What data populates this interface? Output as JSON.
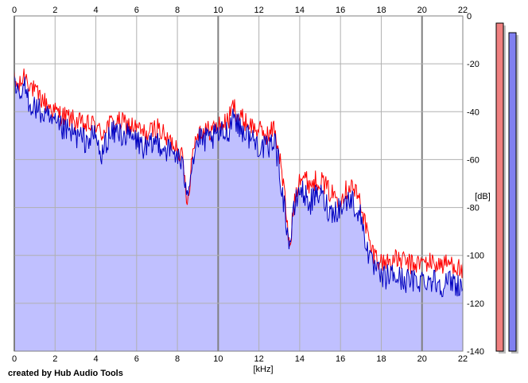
{
  "footer": {
    "credit": "created by Hub Audio Tools"
  },
  "colors": {
    "background": "#ffffff",
    "grid": "#b0b0b0",
    "grid_major": "#808080",
    "fill": "#c0c0ff",
    "left_channel": "#ff0000",
    "right_channel": "#0000c0",
    "meter_left_fill": "#f08080",
    "meter_right_fill": "#8080f0"
  },
  "chart_data": {
    "type": "line",
    "title": "",
    "xlabel": "[kHz]",
    "ylabel": "[dB]",
    "xlim": [
      0,
      22
    ],
    "ylim": [
      -140,
      0
    ],
    "x_ticks": [
      "0",
      "2",
      "4",
      "6",
      "8",
      "10",
      "12",
      "14",
      "16",
      "18",
      "20",
      "22"
    ],
    "x_ticks_top": [
      "0",
      "2",
      "4",
      "6",
      "8",
      "10",
      "12",
      "14",
      "16",
      "18",
      "20",
      "22"
    ],
    "y_ticks": [
      "0",
      "-20",
      "-40",
      "-60",
      "-80",
      "-100",
      "-120",
      "-140"
    ],
    "grid": true,
    "legend": "none",
    "series": [
      {
        "channel": "left",
        "color": "#ff0000",
        "x": [
          0,
          0.25,
          0.5,
          0.75,
          1,
          1.5,
          2,
          2.5,
          3,
          3.5,
          4,
          4.25,
          4.5,
          5,
          5.5,
          6,
          6.5,
          7,
          7.5,
          8,
          8.25,
          8.5,
          8.75,
          9,
          9.5,
          10,
          10.5,
          10.75,
          11,
          11.5,
          12,
          12.5,
          12.75,
          13,
          13.25,
          13.5,
          13.75,
          14,
          14.5,
          15,
          15.5,
          16,
          16.5,
          17,
          17.5,
          17.75,
          18,
          18.5,
          19,
          19.5,
          20,
          20.5,
          21,
          21.5,
          22
        ],
        "y": [
          -27,
          -30,
          -24,
          -28,
          -32,
          -36,
          -40,
          -42,
          -44,
          -46,
          -45,
          -50,
          -46,
          -44,
          -45,
          -47,
          -50,
          -46,
          -52,
          -54,
          -60,
          -78,
          -56,
          -48,
          -48,
          -46,
          -44,
          -37,
          -42,
          -45,
          -48,
          -50,
          -46,
          -58,
          -74,
          -98,
          -76,
          -66,
          -70,
          -68,
          -74,
          -76,
          -70,
          -78,
          -98,
          -100,
          -103,
          -102,
          -102,
          -104,
          -103,
          -103,
          -104,
          -103,
          -107
        ]
      },
      {
        "channel": "right",
        "color": "#0000c0",
        "x": [
          0,
          0.25,
          0.5,
          0.75,
          1,
          1.5,
          2,
          2.5,
          3,
          3.5,
          4,
          4.25,
          4.5,
          5,
          5.5,
          6,
          6.5,
          7,
          7.5,
          8,
          8.25,
          8.5,
          8.75,
          9,
          9.5,
          10,
          10.5,
          10.75,
          11,
          11.5,
          12,
          12.5,
          12.75,
          13,
          13.25,
          13.5,
          13.75,
          14,
          14.5,
          15,
          15.5,
          16,
          16.5,
          17,
          17.5,
          17.75,
          18,
          18.5,
          19,
          19.5,
          20,
          20.5,
          21,
          21.5,
          22
        ],
        "y": [
          -30,
          -35,
          -30,
          -36,
          -38,
          -42,
          -46,
          -48,
          -50,
          -52,
          -50,
          -60,
          -52,
          -48,
          -50,
          -52,
          -56,
          -52,
          -56,
          -58,
          -64,
          -72,
          -60,
          -52,
          -52,
          -50,
          -48,
          -40,
          -46,
          -50,
          -54,
          -56,
          -50,
          -64,
          -80,
          -96,
          -80,
          -72,
          -78,
          -74,
          -82,
          -80,
          -76,
          -84,
          -104,
          -106,
          -110,
          -108,
          -110,
          -111,
          -110,
          -110,
          -112,
          -111,
          -113
        ]
      }
    ],
    "level_meters": [
      {
        "channel": "left",
        "peak_db": -3,
        "color": "#f08080"
      },
      {
        "channel": "right",
        "peak_db": -7,
        "color": "#8080f0"
      }
    ]
  }
}
